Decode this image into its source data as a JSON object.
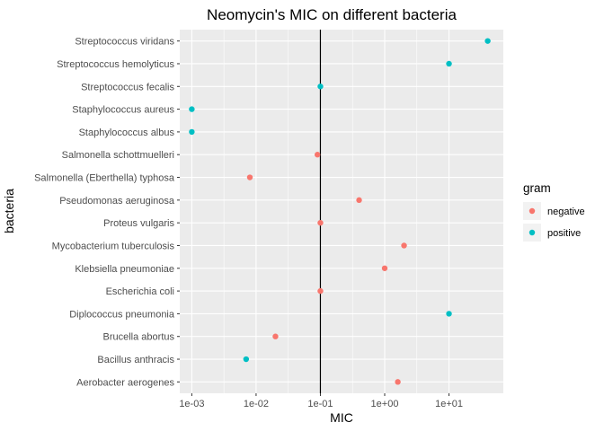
{
  "chart_data": {
    "type": "scatter",
    "title": "Neomycin's MIC on different bacteria",
    "xlabel": "MIC",
    "ylabel": "bacteria",
    "x_scale": "log10",
    "xlim": [
      0.00065,
      70
    ],
    "x_ticks": [
      0.001,
      0.01,
      0.1,
      1,
      10
    ],
    "x_tick_labels": [
      "1e-03",
      "1e-02",
      "1e-01",
      "1e+00",
      "1e+01"
    ],
    "reference_line_x": 0.1,
    "grid": true,
    "legend": {
      "title": "gram",
      "position": "right",
      "entries": [
        {
          "label": "negative",
          "color": "#F8766D"
        },
        {
          "label": "positive",
          "color": "#00BFC4"
        }
      ]
    },
    "categories": [
      "Streptococcus viridans",
      "Streptococcus hemolyticus",
      "Streptococcus fecalis",
      "Staphylococcus aureus",
      "Staphylococcus albus",
      "Salmonella schottmuelleri",
      "Salmonella (Eberthella) typhosa",
      "Pseudomonas aeruginosa",
      "Proteus vulgaris",
      "Mycobacterium tuberculosis",
      "Klebsiella pneumoniae",
      "Escherichia coli",
      "Diplococcus pneumonia",
      "Brucella abortus",
      "Bacillus anthracis",
      "Aerobacter aerogenes"
    ],
    "points": [
      {
        "bacteria": "Streptococcus viridans",
        "mic": 40,
        "gram": "positive"
      },
      {
        "bacteria": "Streptococcus hemolyticus",
        "mic": 10,
        "gram": "positive"
      },
      {
        "bacteria": "Streptococcus fecalis",
        "mic": 0.1,
        "gram": "positive"
      },
      {
        "bacteria": "Staphylococcus aureus",
        "mic": 0.001,
        "gram": "positive"
      },
      {
        "bacteria": "Staphylococcus albus",
        "mic": 0.001,
        "gram": "positive"
      },
      {
        "bacteria": "Salmonella schottmuelleri",
        "mic": 0.09,
        "gram": "negative"
      },
      {
        "bacteria": "Salmonella (Eberthella) typhosa",
        "mic": 0.008,
        "gram": "negative"
      },
      {
        "bacteria": "Pseudomonas aeruginosa",
        "mic": 0.4,
        "gram": "negative"
      },
      {
        "bacteria": "Proteus vulgaris",
        "mic": 0.1,
        "gram": "negative"
      },
      {
        "bacteria": "Mycobacterium tuberculosis",
        "mic": 2,
        "gram": "negative"
      },
      {
        "bacteria": "Klebsiella pneumoniae",
        "mic": 1,
        "gram": "negative"
      },
      {
        "bacteria": "Escherichia coli",
        "mic": 0.1,
        "gram": "negative"
      },
      {
        "bacteria": "Diplococcus pneumonia",
        "mic": 10,
        "gram": "positive"
      },
      {
        "bacteria": "Brucella abortus",
        "mic": 0.02,
        "gram": "negative"
      },
      {
        "bacteria": "Bacillus anthracis",
        "mic": 0.007,
        "gram": "positive"
      },
      {
        "bacteria": "Aerobacter aerogenes",
        "mic": 1.6,
        "gram": "negative"
      }
    ]
  }
}
